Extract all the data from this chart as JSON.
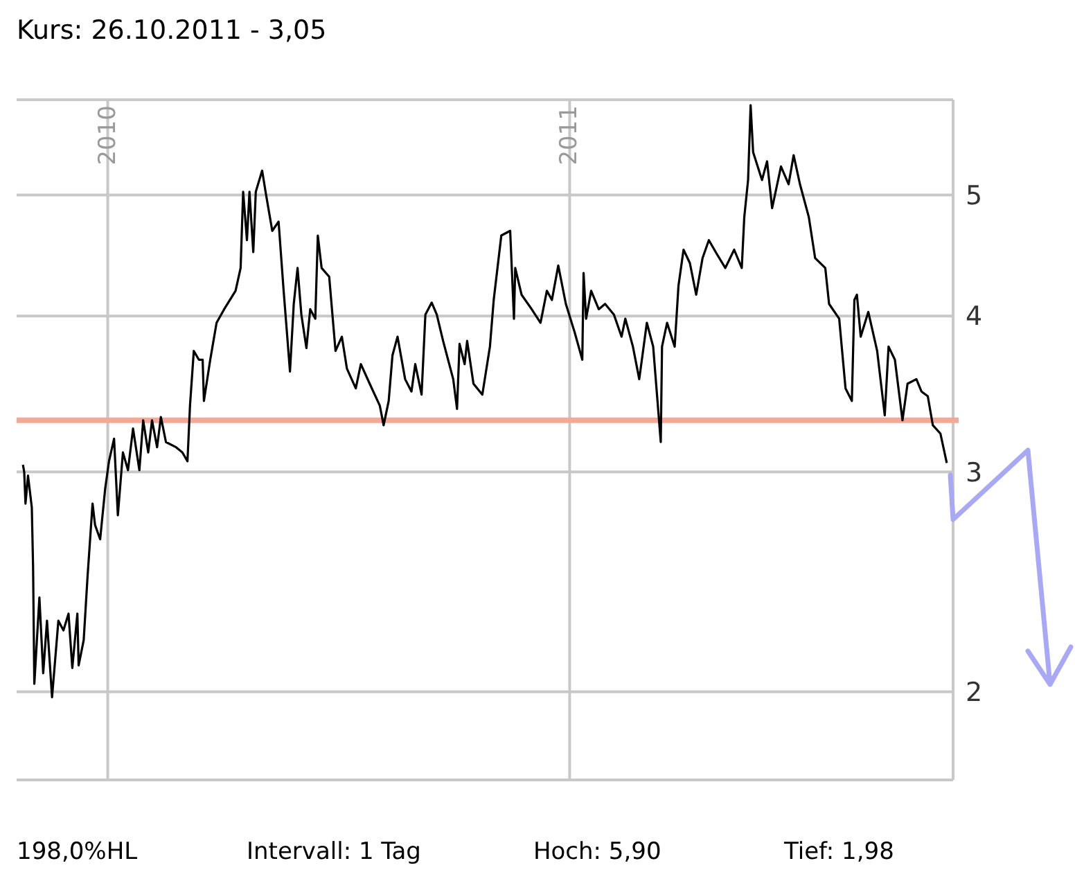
{
  "chart_data": {
    "type": "line",
    "title": "Kurs: 26.10.2011 - 3,05",
    "annotations": [
      "198,0%HL",
      "Intervall: 1 Tag",
      "Hoch: 5,90",
      "Tief: 1,98"
    ],
    "x": [
      "2009-10-26",
      "2009-10-27",
      "2009-10-28",
      "2009-10-30",
      "2009-11-02",
      "2009-11-03",
      "2009-11-04",
      "2009-11-08",
      "2009-11-11",
      "2009-11-14",
      "2009-11-18",
      "2009-11-23",
      "2009-11-27",
      "2009-12-01",
      "2009-12-04",
      "2009-12-08",
      "2009-12-09",
      "2009-12-13",
      "2009-12-16",
      "2009-12-20",
      "2009-12-22",
      "2009-12-26",
      "2009-12-30",
      "2010-01-02",
      "2010-01-06",
      "2010-01-09",
      "2010-01-13",
      "2010-01-17",
      "2010-01-21",
      "2010-01-26",
      "2010-01-29",
      "2010-02-02",
      "2010-02-05",
      "2010-02-09",
      "2010-02-12",
      "2010-02-16",
      "2010-02-24",
      "2010-03-01",
      "2010-03-05",
      "2010-03-07",
      "2010-03-10",
      "2010-03-14",
      "2010-03-17",
      "2010-03-18",
      "2010-03-23",
      "2010-03-28",
      "2010-04-03",
      "2010-04-12",
      "2010-04-16",
      "2010-04-18",
      "2010-04-21",
      "2010-04-23",
      "2010-04-26",
      "2010-04-28",
      "2010-05-03",
      "2010-05-06",
      "2010-05-11",
      "2010-05-16",
      "2010-05-20",
      "2010-05-22",
      "2010-05-25",
      "2010-05-28",
      "2010-05-31",
      "2010-06-03",
      "2010-06-07",
      "2010-06-10",
      "2010-06-14",
      "2010-06-16",
      "2010-06-19",
      "2010-06-25",
      "2010-06-30",
      "2010-07-05",
      "2010-07-09",
      "2010-07-16",
      "2010-07-20",
      "2010-07-27",
      "2010-08-04",
      "2010-08-07",
      "2010-08-11",
      "2010-08-14",
      "2010-08-18",
      "2010-08-24",
      "2010-08-29",
      "2010-09-01",
      "2010-09-06",
      "2010-09-09",
      "2010-09-14",
      "2010-09-18",
      "2010-09-23",
      "2010-10-01",
      "2010-10-04",
      "2010-10-06",
      "2010-10-10",
      "2010-10-12",
      "2010-10-17",
      "2010-10-24",
      "2010-10-30",
      "2010-11-02",
      "2010-11-08",
      "2010-11-15",
      "2010-11-18",
      "2010-11-19",
      "2010-11-24",
      "2010-12-02",
      "2010-12-09",
      "2010-12-14",
      "2010-12-18",
      "2010-12-23",
      "2010-12-29",
      "2011-01-05",
      "2011-01-11",
      "2011-01-12",
      "2011-01-14",
      "2011-01-18",
      "2011-01-24",
      "2011-01-29",
      "2011-02-05",
      "2011-02-11",
      "2011-02-14",
      "2011-02-20",
      "2011-02-25",
      "2011-03-03",
      "2011-03-08",
      "2011-03-14",
      "2011-03-15",
      "2011-03-19",
      "2011-03-25",
      "2011-03-28",
      "2011-04-01",
      "2011-04-06",
      "2011-04-11",
      "2011-04-16",
      "2011-04-21",
      "2011-04-27",
      "2011-05-04",
      "2011-05-11",
      "2011-05-17",
      "2011-05-19",
      "2011-05-22",
      "2011-05-24",
      "2011-05-26",
      "2011-06-02",
      "2011-06-06",
      "2011-06-10",
      "2011-06-17",
      "2011-06-23",
      "2011-06-27",
      "2011-07-02",
      "2011-07-09",
      "2011-07-14",
      "2011-07-22",
      "2011-07-25",
      "2011-08-02",
      "2011-08-07",
      "2011-08-12",
      "2011-08-14",
      "2011-08-16",
      "2011-08-19",
      "2011-08-25",
      "2011-09-01",
      "2011-09-07",
      "2011-09-10",
      "2011-09-15",
      "2011-09-21",
      "2011-09-25",
      "2011-10-02",
      "2011-10-06",
      "2011-10-11",
      "2011-10-15",
      "2011-10-21",
      "2011-10-26"
    ],
    "series": [
      {
        "color": "#000000",
        "values": [
          3.04,
          3.0,
          2.83,
          2.98,
          2.81,
          2.52,
          2.03,
          2.38,
          2.07,
          2.28,
          1.98,
          2.28,
          2.24,
          2.31,
          2.09,
          2.31,
          2.1,
          2.2,
          2.47,
          2.83,
          2.72,
          2.65,
          2.91,
          3.06,
          3.19,
          2.77,
          3.11,
          3.01,
          3.25,
          3.01,
          3.3,
          3.11,
          3.3,
          3.14,
          3.32,
          3.17,
          3.14,
          3.11,
          3.06,
          3.39,
          3.75,
          3.69,
          3.69,
          3.42,
          3.69,
          3.95,
          4.05,
          4.19,
          4.37,
          5.03,
          4.6,
          5.03,
          4.5,
          5.03,
          5.23,
          5.01,
          4.68,
          4.76,
          4.19,
          3.95,
          3.61,
          4.09,
          4.37,
          4.01,
          3.77,
          4.05,
          3.98,
          4.64,
          4.37,
          4.3,
          3.75,
          3.85,
          3.63,
          3.5,
          3.66,
          3.53,
          3.39,
          3.27,
          3.42,
          3.72,
          3.85,
          3.56,
          3.48,
          3.66,
          3.46,
          4.01,
          4.1,
          4.01,
          3.82,
          3.56,
          3.37,
          3.8,
          3.66,
          3.82,
          3.53,
          3.46,
          3.78,
          4.12,
          4.64,
          4.68,
          3.98,
          4.37,
          4.16,
          4.05,
          3.95,
          4.19,
          4.12,
          4.39,
          4.09,
          3.88,
          3.69,
          4.33,
          3.98,
          4.19,
          4.05,
          4.09,
          4.01,
          3.85,
          3.98,
          3.78,
          3.56,
          3.95,
          3.78,
          3.17,
          3.78,
          3.95,
          3.78,
          4.23,
          4.52,
          4.41,
          4.16,
          4.45,
          4.6,
          4.49,
          4.37,
          4.52,
          4.37,
          4.8,
          5.14,
          5.9,
          5.41,
          5.14,
          5.32,
          4.88,
          5.27,
          5.1,
          5.38,
          5.1,
          4.8,
          4.45,
          4.37,
          4.09,
          3.98,
          3.5,
          3.42,
          4.12,
          4.16,
          3.85,
          4.03,
          3.75,
          3.33,
          3.78,
          3.69,
          3.3,
          3.53,
          3.56,
          3.48,
          3.45,
          3.27,
          3.22,
          3.05
        ]
      }
    ],
    "xlim": [
      "2009-10-21",
      "2011-10-31"
    ],
    "xticks": [
      {
        "value": "2010-01-01",
        "label": "2010"
      },
      {
        "value": "2011-01-01",
        "label": "2011"
      }
    ],
    "ylim": [
      1.7,
      5.96
    ],
    "yticks": [
      2,
      3,
      4,
      5
    ],
    "log": true,
    "grid": true,
    "ref_lines": [
      {
        "axis": "y",
        "value": 3.3,
        "color": "#f4a89a"
      }
    ]
  }
}
